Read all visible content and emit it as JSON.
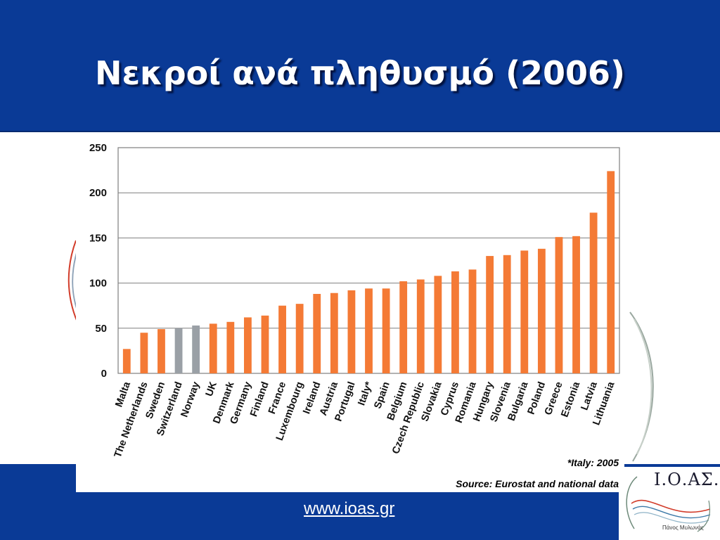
{
  "slide": {
    "title": "Νεκροί ανά πληθυσμό (2006)",
    "note": "*Italy: 2005",
    "source": "Source: Eurostat and national data",
    "website": "www.ioas.gr",
    "logo_text": "Ι.Ο.ΑΣ.",
    "logo_sub": "Πάνος Μυλωνάς"
  },
  "colors": {
    "header_bg": "#0a3a96",
    "bar_orange": "#f47a35",
    "bar_grey": "#9aa0a6",
    "grid": "#7f7f7f"
  },
  "chart_data": {
    "type": "bar",
    "categories": [
      "Malta",
      "The Netherlands",
      "Sweden",
      "Switzerland",
      "Norway",
      "UK",
      "Denmark",
      "Germany",
      "Finland",
      "France",
      "Luxembourg",
      "Ireland",
      "Austria",
      "Portugal",
      "Italy*",
      "Spain",
      "Belgium",
      "Czech Republic",
      "Slovakia",
      "Cyprus",
      "Romania",
      "Hungary",
      "Slovenia",
      "Bulgaria",
      "Poland",
      "Greece",
      "Estonia",
      "Latvia",
      "Lithuania"
    ],
    "values": [
      27,
      45,
      49,
      50,
      53,
      55,
      57,
      62,
      64,
      75,
      77,
      88,
      89,
      92,
      94,
      94,
      102,
      104,
      108,
      113,
      115,
      130,
      131,
      136,
      138,
      151,
      152,
      178,
      224
    ],
    "highlight_categories": [
      "Switzerland",
      "Norway"
    ],
    "ylim": [
      0,
      250
    ],
    "yticks": [
      0,
      50,
      100,
      150,
      200,
      250
    ],
    "grid": true,
    "legend": "none"
  }
}
